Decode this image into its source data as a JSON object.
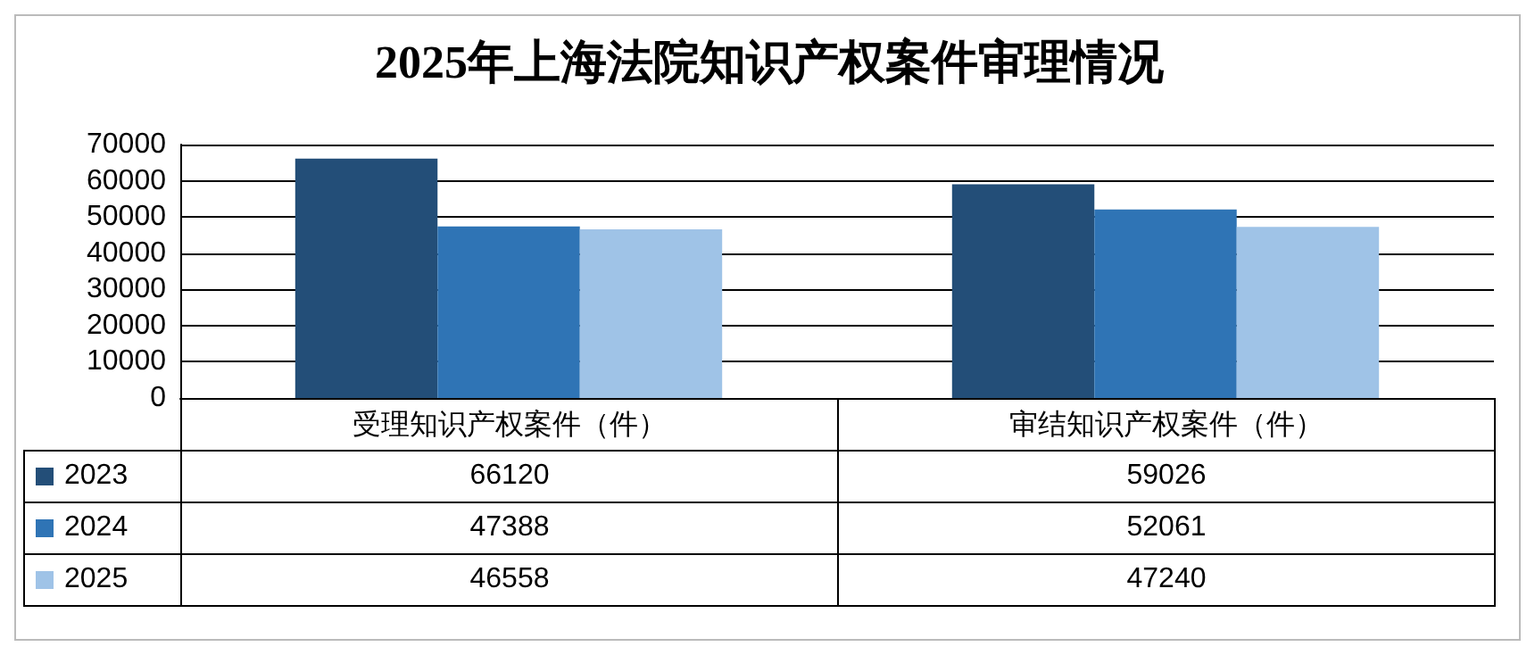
{
  "chart_data": {
    "type": "bar",
    "title": "2025年上海法院知识产权案件审理情况",
    "categories": [
      "受理知识产权案件（件）",
      "审结知识产权案件（件）"
    ],
    "series": [
      {
        "name": "2023",
        "color": "#234e78",
        "values": [
          66120,
          59026
        ]
      },
      {
        "name": "2024",
        "color": "#2f74b5",
        "values": [
          47388,
          52061
        ]
      },
      {
        "name": "2025",
        "color": "#9fc3e7",
        "values": [
          46558,
          47240
        ]
      }
    ],
    "ylim": [
      0,
      70000
    ],
    "yticks": [
      0,
      10000,
      20000,
      30000,
      40000,
      50000,
      60000,
      70000
    ],
    "grid": "y",
    "data_labels": true,
    "legend": "bottom"
  }
}
